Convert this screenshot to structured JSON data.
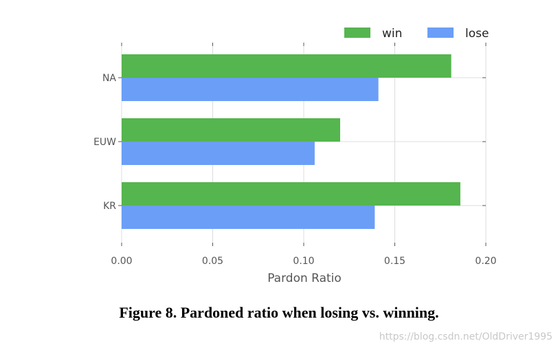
{
  "chart_data": {
    "type": "bar",
    "orientation": "horizontal",
    "categories": [
      "NA",
      "EUW",
      "KR"
    ],
    "series": [
      {
        "name": "win",
        "values": [
          0.181,
          0.12,
          0.186
        ],
        "color": "#55b54f"
      },
      {
        "name": "lose",
        "values": [
          0.141,
          0.106,
          0.139
        ],
        "color": "#6b9ef7"
      }
    ],
    "xlabel": "Pardon Ratio",
    "ylabel": "",
    "xlim": [
      0,
      0.2
    ],
    "xticks": [
      "0.00",
      "0.05",
      "0.10",
      "0.15",
      "0.20"
    ],
    "grid": true,
    "legend": "top-right"
  },
  "caption": "Figure 8. Pardoned ratio when losing vs. winning.",
  "watermark": "https://blog.csdn.net/OldDriver1995"
}
